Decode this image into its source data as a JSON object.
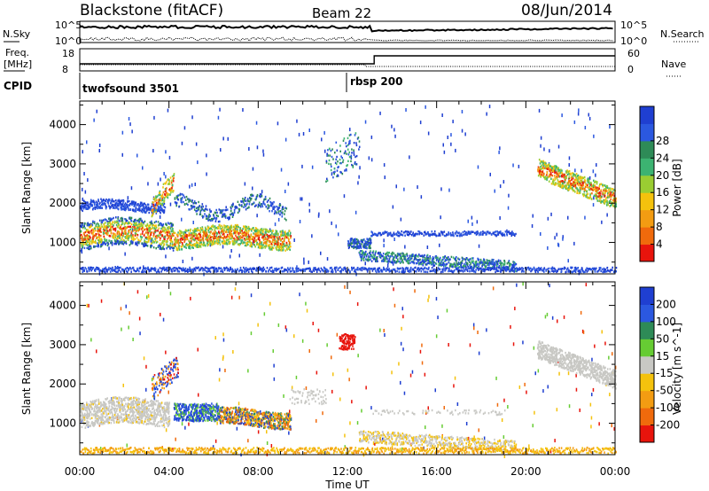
{
  "header": {
    "station": "Blackstone (fitACF)",
    "beam": "Beam 22",
    "date": "08/Jun/2014"
  },
  "top_panels": {
    "nsky_label": "N.Sky",
    "nsky_tick_top": "10^5",
    "nsky_tick_bottom": "10^0",
    "nsearch_label": "N.Search",
    "nsearch_tick_top": "10^5",
    "nsearch_tick_bottom": "10^0",
    "freq_label_1": "Freq.",
    "freq_label_2": "[MHz]",
    "freq_tick_top": "18",
    "freq_tick_bottom": "8",
    "nave_label": "Nave",
    "nave_tick_top": "60",
    "nave_tick_bottom": "0",
    "cpid_label": "CPID",
    "cpid_1": "twofsound 3501",
    "cpid_2": "rbsp 200"
  },
  "colors": {
    "power": [
      "#1f3fd1",
      "#2b58e0",
      "#2e8b57",
      "#3cb371",
      "#9acd32",
      "#f4c20d",
      "#f39c12",
      "#f06a0c",
      "#e8140c"
    ],
    "velocity": [
      "#1f3fd1",
      "#2b58e0",
      "#2e8b57",
      "#66cc33",
      "#c8c8c4",
      "#f4c20d",
      "#f39c12",
      "#f06a0c",
      "#e8140c"
    ],
    "ground": "#c8c8c4"
  },
  "chart_data": [
    {
      "type": "heatmap",
      "ylabel": "Slant Range [km]",
      "xlabel": "Time UT",
      "x_ticks": [
        "00:00",
        "04:00",
        "08:00",
        "12:00",
        "16:00",
        "20:00",
        "00:00"
      ],
      "y_ticks": [
        "1000",
        "2000",
        "3000",
        "4000"
      ],
      "ylim": [
        200,
        4600
      ],
      "xlim_hours": [
        0,
        24
      ],
      "colorbar": {
        "label": "Power [dB]",
        "ticks": [
          "4",
          "8",
          "12",
          "16",
          "20",
          "24",
          "28"
        ],
        "range": [
          0,
          30
        ]
      }
    },
    {
      "type": "heatmap",
      "ylabel": "Slant Range [km]",
      "xlabel": "Time UT",
      "x_ticks": [
        "00:00",
        "04:00",
        "08:00",
        "12:00",
        "16:00",
        "20:00",
        "00:00"
      ],
      "y_ticks": [
        "1000",
        "2000",
        "3000",
        "4000"
      ],
      "ylim": [
        200,
        4600
      ],
      "xlim_hours": [
        0,
        24
      ],
      "colorbar": {
        "label": "Velocity [m s^-1]",
        "ticks": [
          "200",
          "100",
          "50",
          "15",
          "-15",
          "-50",
          "-100",
          "-200"
        ]
      }
    }
  ]
}
